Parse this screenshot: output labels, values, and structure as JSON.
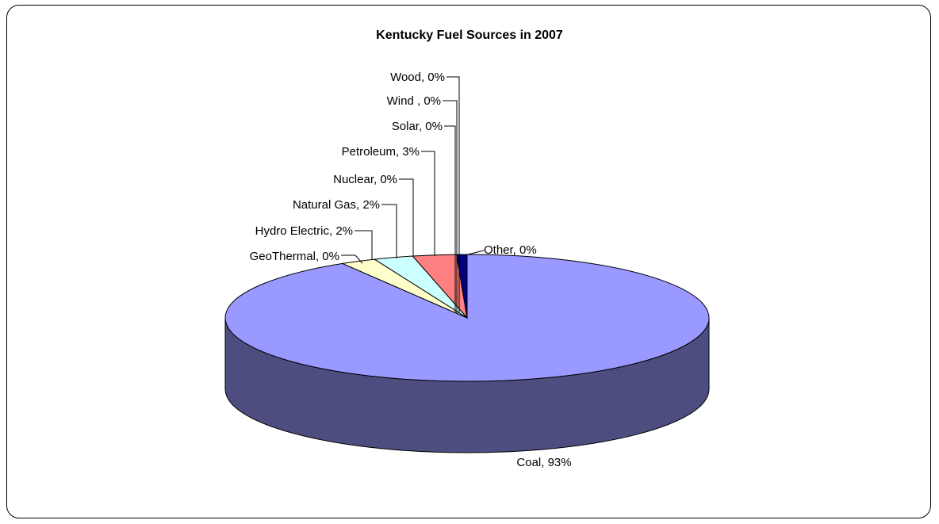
{
  "chart_data": {
    "type": "pie",
    "title": "Kentucky Fuel Sources in 2007",
    "three_d": true,
    "categories": [
      "Coal",
      "GeoThermal",
      "Hydro Electric",
      "Natural Gas",
      "Nuclear",
      "Petroleum",
      "Solar",
      "Wind ",
      "Wood",
      "Other"
    ],
    "values": [
      93,
      0,
      2,
      2,
      0,
      3,
      0,
      0,
      0,
      0
    ],
    "labels": [
      "Coal, 93%",
      "GeoThermal, 0%",
      "Hydro Electric, 2%",
      "Natural Gas, 2%",
      "Nuclear, 0%",
      "Petroleum, 3%",
      "Solar, 0%",
      "Wind , 0%",
      "Wood, 0%",
      "Other, 0%"
    ],
    "colors": {
      "coal_top": "#9999ff",
      "coal_side": "#4d4d80",
      "geothermal": "#ffffcc",
      "hydro": "#ffffcc",
      "natural_gas": "#ccffff",
      "nuclear": "#ccffff",
      "petroleum": "#ff8080",
      "solar": "#0066cc",
      "wind": "#c0c0c0",
      "wood": "#ccccff",
      "other": "#000080"
    }
  }
}
